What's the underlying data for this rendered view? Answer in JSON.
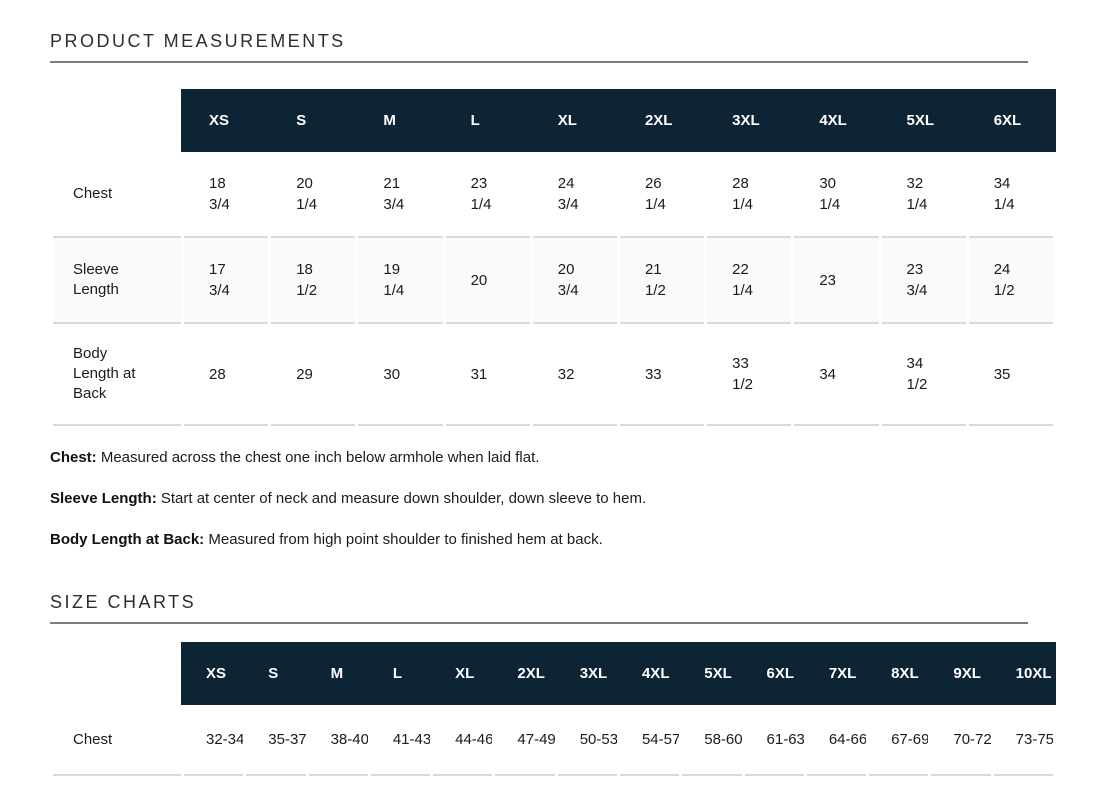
{
  "product_measurements": {
    "title": "PRODUCT MEASUREMENTS",
    "sizes": [
      "XS",
      "S",
      "M",
      "L",
      "XL",
      "2XL",
      "3XL",
      "4XL",
      "5XL",
      "6XL"
    ],
    "rows": [
      {
        "label": "Chest",
        "values": [
          "18\n3/4",
          "20\n1/4",
          "21\n3/4",
          "23\n1/4",
          "24\n3/4",
          "26\n1/4",
          "28\n1/4",
          "30\n1/4",
          "32\n1/4",
          "34\n1/4"
        ]
      },
      {
        "label": "Sleeve Length",
        "values": [
          "17\n3/4",
          "18\n1/2",
          "19\n1/4",
          "20",
          "20\n3/4",
          "21\n1/2",
          "22\n1/4",
          "23",
          "23\n3/4",
          "24\n1/2"
        ]
      },
      {
        "label": "Body Length at Back",
        "values": [
          "28",
          "29",
          "30",
          "31",
          "32",
          "33",
          "33\n1/2",
          "34",
          "34\n1/2",
          "35"
        ]
      }
    ],
    "notes": [
      {
        "term": "Chest:",
        "text": "Measured across the chest one inch below armhole when laid flat."
      },
      {
        "term": "Sleeve Length:",
        "text": "Start at center of neck and measure down shoulder, down sleeve to hem."
      },
      {
        "term": "Body Length at Back:",
        "text": "Measured from high point shoulder to finished hem at back."
      }
    ]
  },
  "size_charts": {
    "title": "SIZE CHARTS",
    "sizes": [
      "XS",
      "S",
      "M",
      "L",
      "XL",
      "2XL",
      "3XL",
      "4XL",
      "5XL",
      "6XL",
      "7XL",
      "8XL",
      "9XL",
      "10XL"
    ],
    "rows": [
      {
        "label": "Chest",
        "values": [
          "32-34",
          "35-37",
          "38-40",
          "41-43",
          "44-46",
          "47-49",
          "50-53",
          "54-57",
          "58-60",
          "61-63",
          "64-66",
          "67-69",
          "70-72",
          "73-75"
        ]
      }
    ]
  },
  "colors": {
    "header_bg": "#0d2435",
    "header_text": "#ffffff",
    "row_stripe": "#fafafa",
    "divider": "#d9d9d9",
    "heading_underline": "#7d7d7d"
  }
}
